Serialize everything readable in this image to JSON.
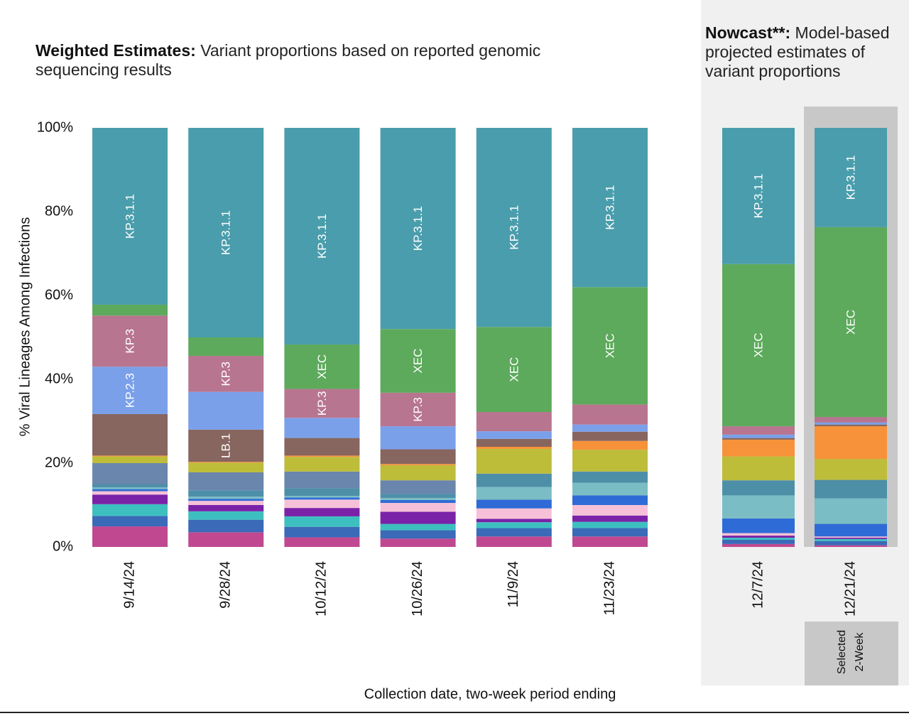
{
  "chart_data": {
    "type": "stacked_bar",
    "title_bold": "Weighted Estimates:",
    "title": "Variant proportions based on reported genomic sequencing results",
    "nowcast_title_bold": "Nowcast**:",
    "nowcast_title": "Model-based projected estimates of variant proportions",
    "x_label": "Collection date, two-week period ending",
    "y_label": "% Viral Lineages Among Infections",
    "selected_note": [
      "Selected",
      "2-Week"
    ],
    "nowcast_start": 6,
    "selected_index": 7,
    "categories": [
      "9/14/24",
      "9/28/24",
      "10/12/24",
      "10/26/24",
      "11/9/24",
      "11/23/24",
      "12/7/24",
      "12/21/24"
    ],
    "ylim": [
      0,
      100
    ],
    "yticks": [
      {
        "value": 0,
        "label": "0%"
      },
      {
        "value": 20,
        "label": "20%"
      },
      {
        "value": 40,
        "label": "40%"
      },
      {
        "value": 60,
        "label": "60%"
      },
      {
        "value": 80,
        "label": "80%"
      },
      {
        "value": 100,
        "label": "100%"
      }
    ],
    "series": [
      {
        "color": "#c04890",
        "values": [
          4.9,
          3.5,
          2.3,
          2,
          2.5,
          2.5,
          0.7,
          0.4
        ]
      },
      {
        "color": "#3a6ab8",
        "values": [
          2.5,
          3,
          2.5,
          2,
          2,
          2,
          1,
          1
        ]
      },
      {
        "color": "#3ebfbf",
        "values": [
          2.8,
          2,
          2.5,
          1.5,
          1.4,
          1.5,
          0.5,
          0.5
        ]
      },
      {
        "color": "#7a22a8",
        "values": [
          2.3,
          1.5,
          2,
          2.9,
          0.8,
          1.5,
          0.5,
          0.3
        ]
      },
      {
        "color": "#f6c1d8",
        "values": [
          0.8,
          1,
          2,
          2.1,
          2.5,
          2.5,
          0.6,
          0.3
        ]
      },
      {
        "color": "#2f6bd6",
        "values": [
          0.5,
          0.5,
          0.5,
          0.7,
          2.1,
          2.3,
          3.5,
          3
        ]
      },
      {
        "color": "#7bbdc4",
        "values": [
          0.4,
          0.5,
          0.4,
          0.5,
          3,
          3,
          5.5,
          6.1
        ]
      },
      {
        "color": "#4e8fa8",
        "values": [
          0.8,
          1.5,
          1.8,
          1,
          3.2,
          2.7,
          3.6,
          4.4
        ]
      },
      {
        "color": "#6a86ac",
        "values": [
          5,
          4.3,
          4,
          3.2,
          0,
          0,
          0,
          0
        ]
      },
      {
        "color": "#bdbd3a",
        "values": [
          1.6,
          2.3,
          3.5,
          3.6,
          5.9,
          5.2,
          5.7,
          5
        ]
      },
      {
        "color": "#f7923a",
        "values": [
          0.2,
          0.2,
          0.3,
          0.3,
          0.5,
          2.1,
          4,
          7.8
        ]
      },
      {
        "color": "#87665f",
        "values": [
          9.9,
          7.7,
          4.2,
          3.5,
          1.9,
          2.2,
          0.4,
          0.4
        ],
        "labels": [
          null,
          "LB.1",
          null,
          null,
          null,
          null,
          null,
          null
        ]
      },
      {
        "color": "#7aa0ea",
        "values": [
          11.3,
          9,
          4.8,
          5.5,
          1.8,
          1.7,
          0.8,
          0.5
        ],
        "labels": [
          "KP.2.3",
          null,
          null,
          null,
          null,
          null,
          null,
          null
        ]
      },
      {
        "color": "#b8758f",
        "values": [
          12.2,
          8.6,
          6.9,
          8,
          4.6,
          4.8,
          2,
          1.3
        ],
        "labels": [
          "KP.3",
          "KP.3",
          "KP.3",
          "KP.3",
          null,
          null,
          null,
          null
        ]
      },
      {
        "color": "#5daa5c",
        "values": [
          2.6,
          4.4,
          10.6,
          15.2,
          20.3,
          28,
          38.7,
          45.3
        ],
        "labels": [
          null,
          null,
          "XEC",
          "XEC",
          "XEC",
          "XEC",
          "XEC",
          "XEC"
        ]
      },
      {
        "color": "#4a9dac",
        "values": [
          42.2,
          50,
          51.7,
          48,
          47.5,
          38,
          32.5,
          23.7
        ],
        "labels": [
          "KP.3.1.1",
          "KP.3.1.1",
          "KP.3.1.1",
          "KP.3.1.1",
          "KP.3.1.1",
          "KP.3.1.1",
          "KP.3.1.1",
          "KP.3.1.1"
        ]
      }
    ]
  }
}
